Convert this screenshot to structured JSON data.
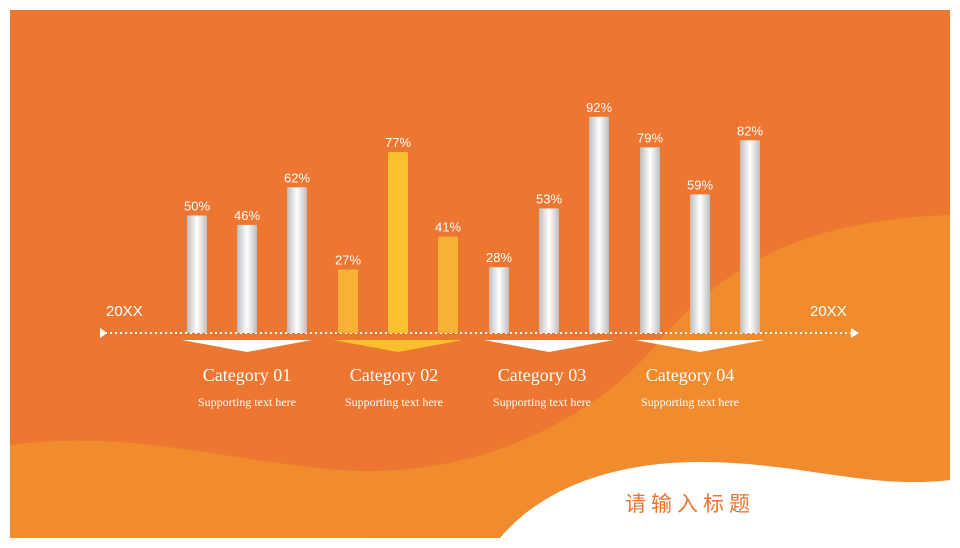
{
  "slide": {
    "title": "请输入标题"
  },
  "timeline": {
    "start_label": "20XX",
    "end_label": "20XX"
  },
  "colors": {
    "background": "#ED7630",
    "wave": "#F08B2E",
    "highlight": "#FBC02D",
    "bar_light": "#FFFFFF",
    "bar_dark": "#BDBDBD"
  },
  "chart_data": {
    "type": "bar",
    "title": "",
    "xlabel": "",
    "ylabel": "",
    "ylim": [
      0,
      100
    ],
    "unit": "%",
    "grid": false,
    "groups": [
      {
        "label": "Category 01",
        "subtitle": "Supporting text here",
        "values": [
          50,
          46,
          62
        ],
        "highlight": false
      },
      {
        "label": "Category 02",
        "subtitle": "Supporting text here",
        "values": [
          27,
          77,
          41
        ],
        "highlight": true
      },
      {
        "label": "Category 03",
        "subtitle": "Supporting text here",
        "values": [
          28,
          53,
          92
        ],
        "highlight": false
      },
      {
        "label": "Category 04",
        "subtitle": "Supporting text here",
        "values": [
          79,
          59,
          82
        ],
        "highlight": false
      }
    ]
  }
}
